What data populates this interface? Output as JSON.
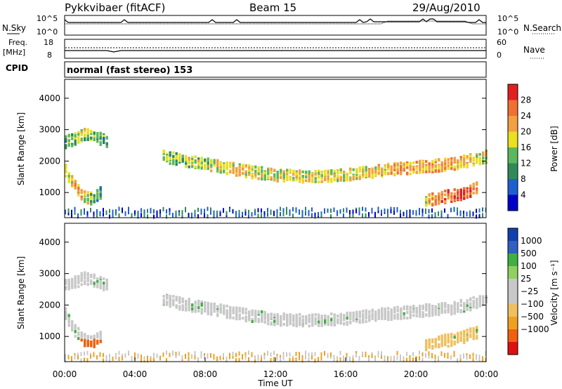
{
  "header": {
    "station": "Pykkvibaer (fitACF)",
    "beam": "Beam 15",
    "date": "29/Aug/2010",
    "cpid": "normal (fast stereo) 153"
  },
  "panels": {
    "nsky": {
      "label": "N.Sky",
      "tick_top": "10^5",
      "tick_bottom": "10^0"
    },
    "nsearch": {
      "label": "N.Search",
      "tick_top": "10^5",
      "tick_bottom": "10^0"
    },
    "freq": {
      "label_line1": "Freq.",
      "label_line2": "[MHz]",
      "tick_top": "18",
      "tick_bottom": "8"
    },
    "nave": {
      "label": "Nave",
      "tick_top": "60",
      "tick_bottom": "0"
    },
    "cpid_label": "CPID"
  },
  "colors": {
    "power": [
      "#0000cc",
      "#1e5fd0",
      "#2f8a5a",
      "#5cb85c",
      "#e8e020",
      "#f2a040",
      "#f07030",
      "#e02020"
    ],
    "velocity": [
      "#e01010",
      "#f06010",
      "#f0a020",
      "#f0c060",
      "#c8c8c8",
      "#c8c8c8",
      "#90d060",
      "#40b040",
      "#3060c0",
      "#1040b0"
    ]
  },
  "chart_data": [
    {
      "type": "heatmap",
      "quantity": "power",
      "ylabel": "Slant Range [km]",
      "ylim": [
        200,
        4600
      ],
      "yticks": [
        "1000",
        "2000",
        "3000",
        "4000"
      ],
      "colorbar": {
        "label": "Power [dB]",
        "ticks": [
          "4",
          "8",
          "12",
          "16",
          "20",
          "24",
          "28"
        ],
        "range": [
          0,
          32
        ]
      },
      "bands": [
        {
          "name": "main",
          "x_hours": [
            5.5,
            8,
            10,
            12,
            14,
            16,
            18,
            20,
            22,
            24
          ],
          "center_km": [
            2150,
            1900,
            1700,
            1550,
            1500,
            1560,
            1700,
            1800,
            1900,
            2150
          ],
          "value_db": [
            14,
            16,
            20,
            17,
            18,
            18,
            20,
            22,
            22,
            18
          ]
        },
        {
          "name": "early",
          "x_hours": [
            0,
            0.5,
            1,
            1.5,
            2,
            2.5
          ],
          "center_km": [
            2600,
            2700,
            2850,
            2800,
            2700,
            2600
          ],
          "value_db": [
            12,
            14,
            16,
            14,
            12,
            10
          ]
        },
        {
          "name": "lower_early",
          "x_hours": [
            0,
            0.5,
            1,
            1.5,
            2
          ],
          "center_km": [
            1700,
            1200,
            900,
            800,
            1000
          ],
          "value_db": [
            16,
            22,
            20,
            14,
            10
          ]
        },
        {
          "name": "late_low",
          "x_hours": [
            20.5,
            21.5,
            22.5,
            23.5
          ],
          "center_km": [
            750,
            850,
            950,
            1150
          ],
          "value_db": [
            18,
            26,
            28,
            24
          ]
        }
      ]
    },
    {
      "type": "heatmap",
      "quantity": "velocity",
      "ylabel": "Slant Range [km]",
      "ylim": [
        200,
        4600
      ],
      "yticks": [
        "1000",
        "2000",
        "3000",
        "4000"
      ],
      "colorbar": {
        "label": "Velocity [m s⁻¹]",
        "ticks": [
          "1000",
          "500",
          "100",
          "25",
          "−25",
          "−100",
          "−500",
          "−1000"
        ]
      },
      "xlabel": "Time UT",
      "xticks": [
        "00:00",
        "04:00",
        "08:00",
        "12:00",
        "16:00",
        "20:00",
        "00:00"
      ]
    }
  ]
}
